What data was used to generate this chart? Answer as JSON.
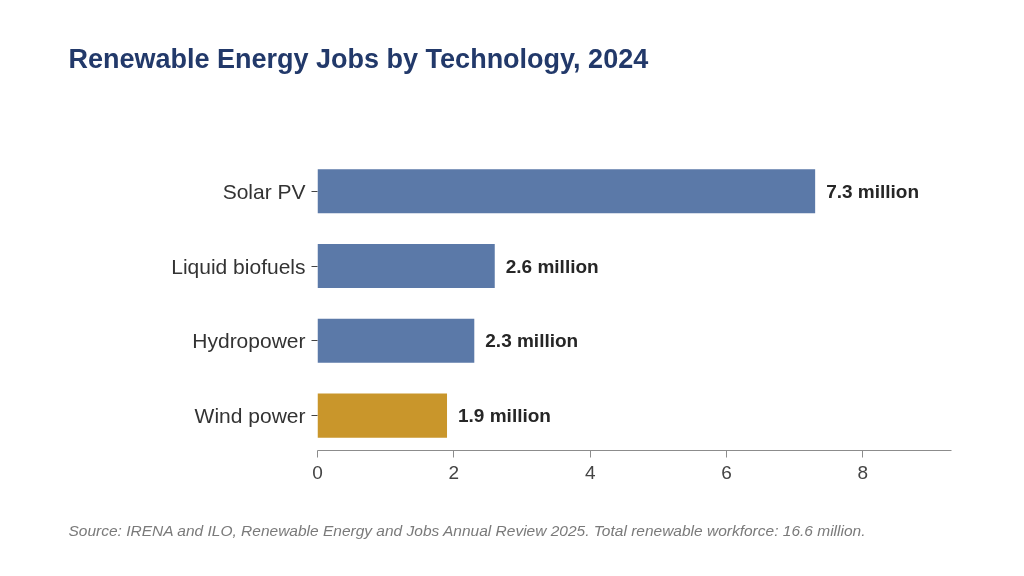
{
  "chart_data": {
    "type": "bar",
    "orientation": "horizontal",
    "title": "Renewable Energy Jobs by Technology, 2024",
    "categories": [
      "Solar PV",
      "Liquid biofuels",
      "Hydropower",
      "Wind power"
    ],
    "values": [
      7.3,
      2.6,
      2.3,
      1.9
    ],
    "colors": [
      "#5b79a8",
      "#5b79a8",
      "#5b79a8",
      "#c9962b"
    ],
    "value_labels": [
      "7.3 million",
      "2.6 million",
      "2.3 million",
      "1.9 million"
    ],
    "xlim": [
      0,
      9.3
    ],
    "xticks": [
      0,
      2,
      4,
      6,
      8
    ],
    "grid": false,
    "annotations": [
      "Source: IRENA and ILO, Renewable Energy and Jobs Annual Review 2025. Total renewable workforce: 16.6 million."
    ]
  }
}
